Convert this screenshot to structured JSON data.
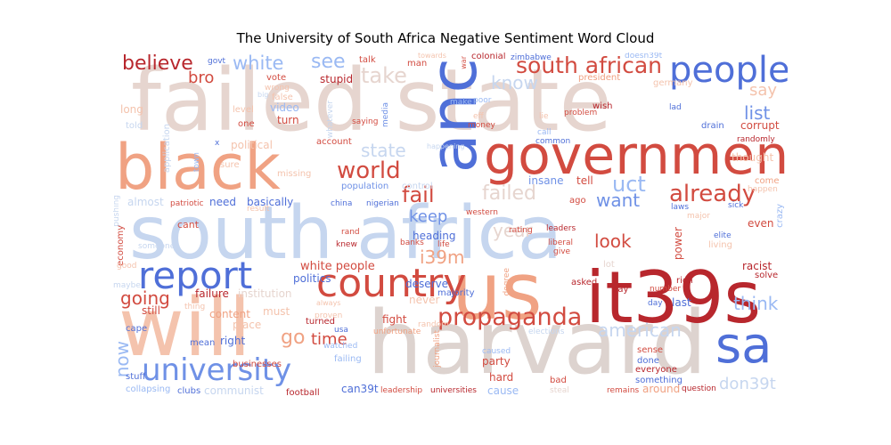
{
  "title": "The University of South Africa Negative Sentiment Word Cloud",
  "colors": {
    "dark_red": "#b8272d",
    "red": "#d24b40",
    "salmon": "#f0a283",
    "light_salmon": "#f4c3ad",
    "beige": "#e6d5cf",
    "beige_gray": "#ddd3cf",
    "pale_blue": "#c6d6ef",
    "light_blue": "#9ab9f3",
    "mid_blue": "#6f91e6",
    "blue": "#4f6fd8"
  },
  "words": {
    "south_africa": "south africa",
    "failed_state": "failed state",
    "black": "black",
    "anc": "anc",
    "government": "government",
    "harvard": "harvard",
    "will": "will",
    "us": "us",
    "it39s": "it39s",
    "country": "country",
    "report": "report",
    "university": "university",
    "sa": "sa",
    "people": "people",
    "south_african": "south african",
    "propaganda": "propaganda",
    "world": "world",
    "already": "already",
    "believe": "believe",
    "white": "white",
    "see": "see",
    "take": "take",
    "know": "know",
    "bro": "bro",
    "state": "state",
    "fail": "fail",
    "failed": "failed",
    "uct": "uct",
    "want": "want",
    "keep": "keep",
    "look": "look",
    "year": "year",
    "i39m": "i39m",
    "going": "going",
    "go": "go",
    "time": "time",
    "now": "now",
    "american": "american",
    "think": "think",
    "don39t": "don39t",
    "list": "list",
    "say": "say",
    "white_people": "white people",
    "heading": "heading",
    "insane": "insane",
    "tell": "tell",
    "last": "last",
    "politics": "politics",
    "failure": "failure",
    "institution": "institution",
    "deserve": "deserve",
    "never": "never",
    "must": "must",
    "fight": "fight",
    "party": "party",
    "hard": "hard",
    "cause": "cause",
    "around": "around",
    "stupid": "stupid",
    "vote": "vote",
    "talk": "talk",
    "man": "man",
    "colonial": "colonial",
    "president": "president",
    "germany": "germany",
    "corrupt": "corrupt",
    "long": "long",
    "told": "told",
    "political": "political",
    "account": "account",
    "turn": "turn",
    "video": "video",
    "false": "false",
    "wrong": "wrong",
    "one": "one",
    "level": "level",
    "application": "application",
    "sure": "sure",
    "town": "town",
    "missing": "missing",
    "population": "population",
    "control": "control",
    "need": "need",
    "basically": "basically",
    "almost": "almost",
    "patriotic": "patriotic",
    "result": "result",
    "pushing": "pushing",
    "economy": "economy",
    "someone": "someone",
    "cant": "cant",
    "good": "good",
    "maybe": "maybe",
    "still": "still",
    "thing": "thing",
    "content": "content",
    "place": "place",
    "right": "right",
    "mean": "mean",
    "cape": "cape",
    "stuff": "stuff",
    "collapsing": "collapsing",
    "clubs": "clubs",
    "communist": "communist",
    "businesses": "businesses",
    "football": "football",
    "can39t": "can39t",
    "leadership": "leadership",
    "universities": "universities",
    "remains": "remains",
    "question": "question",
    "something": "something",
    "everyone": "everyone",
    "done": "done",
    "sense": "sense",
    "bad": "bad",
    "steal": "steal",
    "journalist": "journalist",
    "caused": "caused",
    "unfortunate": "unfortunate",
    "elections": "elections",
    "random": "random",
    "turned": "turned",
    "proven": "proven",
    "watched": "watched",
    "failing": "failing",
    "usa": "usa",
    "always": "always",
    "majority": "majority",
    "degree": "degree",
    "asked": "asked",
    "pay": "pay",
    "rich": "rich",
    "number": "number",
    "day": "day",
    "racist": "racist",
    "solve": "solve",
    "lot": "lot",
    "power": "power",
    "major": "major",
    "laws": "laws",
    "sick": "sick",
    "elite": "elite",
    "even": "even",
    "living": "living",
    "crazy": "crazy",
    "come": "come",
    "happen": "happen",
    "thought": "thought",
    "drain": "drain",
    "randomly": "randomly",
    "zimbabwe": "zimbabwe",
    "doesn39t": "doesn39t",
    "lad": "lad",
    "wish": "wish",
    "problem": "problem",
    "lie": "lie",
    "call": "call",
    "common": "common",
    "ago": "ago",
    "china": "china",
    "nigerian": "nigerian",
    "rating": "rating",
    "leaders": "leaders",
    "liberal": "liberal",
    "give": "give",
    "banks": "banks",
    "life": "life",
    "western": "western",
    "knew": "knew",
    "rand": "rand",
    "saying": "saying",
    "money": "money",
    "make": "make",
    "poor": "poor",
    "eff": "eff",
    "happening": "happening",
    "whatever": "whatever",
    "media": "media",
    "towards": "towards",
    "war": "war",
    "govt": "govt",
    "x": "x",
    "big": "big"
  }
}
